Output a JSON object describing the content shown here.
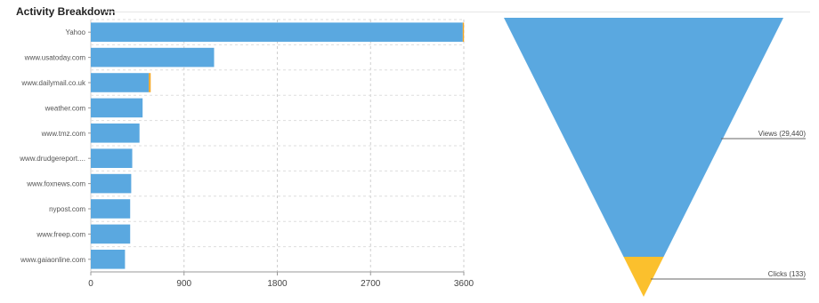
{
  "title": "Activity Breakdown",
  "chart_data": [
    {
      "type": "bar",
      "orientation": "horizontal",
      "categories": [
        "Yahoo",
        "www.usatoday.com",
        "www.dailymail.co.uk",
        "weather.com",
        "www.tmz.com",
        "www.drudgereport....",
        "www.foxnews.com",
        "nypost.com",
        "www.freep.com",
        "www.gaiaonline.com"
      ],
      "series": [
        {
          "values": [
            3590,
            1190,
            560,
            500,
            470,
            400,
            390,
            380,
            380,
            330
          ],
          "color": "#5aa8e0"
        },
        {
          "values": [
            12,
            0,
            18,
            0,
            0,
            0,
            0,
            0,
            0,
            0
          ],
          "color": "#f5a623"
        }
      ],
      "x_ticks": [
        "0",
        "900",
        "1800",
        "2700",
        "3600"
      ],
      "xlim": [
        0,
        3600
      ],
      "grid": true
    },
    {
      "type": "funnel",
      "stages": [
        {
          "label": "Views (29,440)",
          "value": 29440,
          "color": "#5aa8e0"
        },
        {
          "label": "Clicks (133)",
          "value": 133,
          "color": "#fbc02d"
        }
      ]
    }
  ]
}
